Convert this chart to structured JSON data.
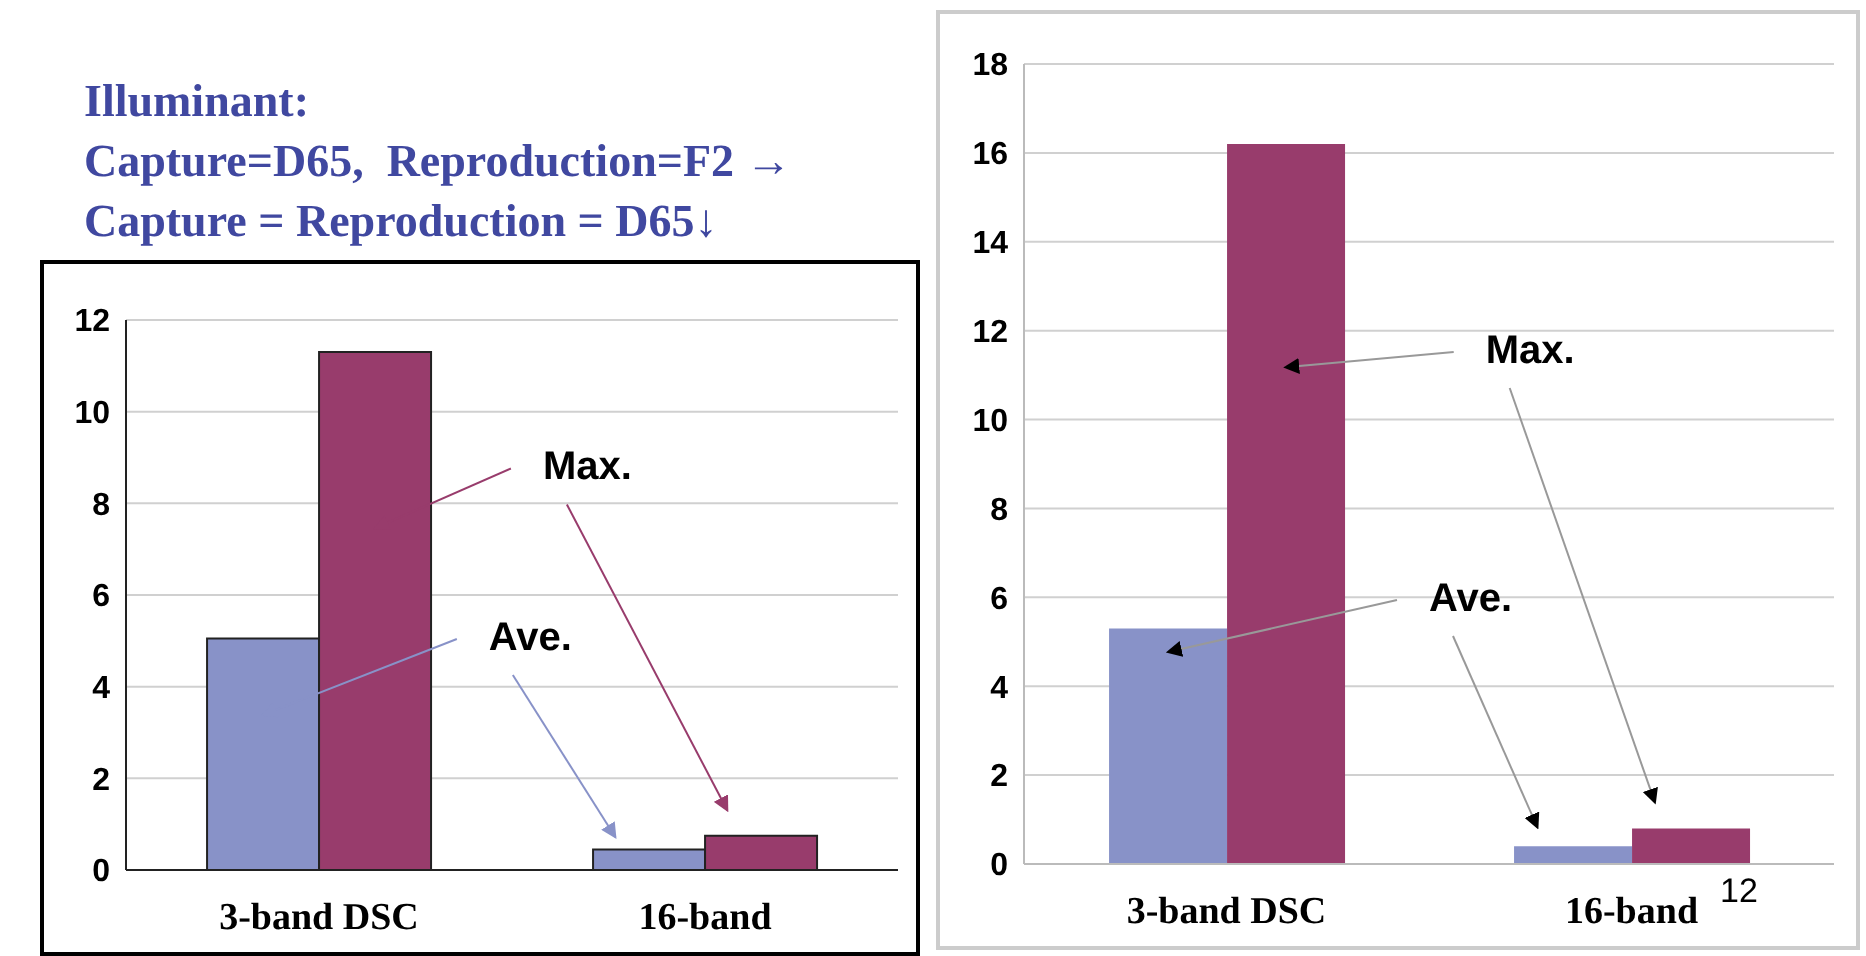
{
  "chart_data": [
    {
      "type": "bar",
      "title": "Illuminant:\nCapture=D65,  Reproduction=F2 →\nCapture = Reproduction = D65↓",
      "categories": [
        "3-band DSC",
        "16-band"
      ],
      "series": [
        {
          "name": "Ave.",
          "color": "#8892c8",
          "values": [
            5.05,
            0.45
          ]
        },
        {
          "name": "Max.",
          "color": "#983c6c",
          "values": [
            11.3,
            0.75
          ]
        }
      ],
      "ylim": [
        0,
        12
      ],
      "yticks": [
        0,
        2,
        4,
        6,
        8,
        10,
        12
      ],
      "grid": "y",
      "legend": false
    },
    {
      "type": "bar",
      "categories": [
        "3-band DSC",
        "16-band"
      ],
      "series": [
        {
          "name": "Ave.",
          "color": "#8892c8",
          "values": [
            5.3,
            0.4
          ]
        },
        {
          "name": "Max.",
          "color": "#983c6c",
          "values": [
            16.2,
            0.8
          ]
        }
      ],
      "ylim": [
        0,
        18
      ],
      "yticks": [
        0,
        2,
        4,
        6,
        8,
        10,
        12,
        14,
        16,
        18
      ],
      "grid": "y",
      "legend": false,
      "annotations": [
        "12"
      ]
    }
  ]
}
